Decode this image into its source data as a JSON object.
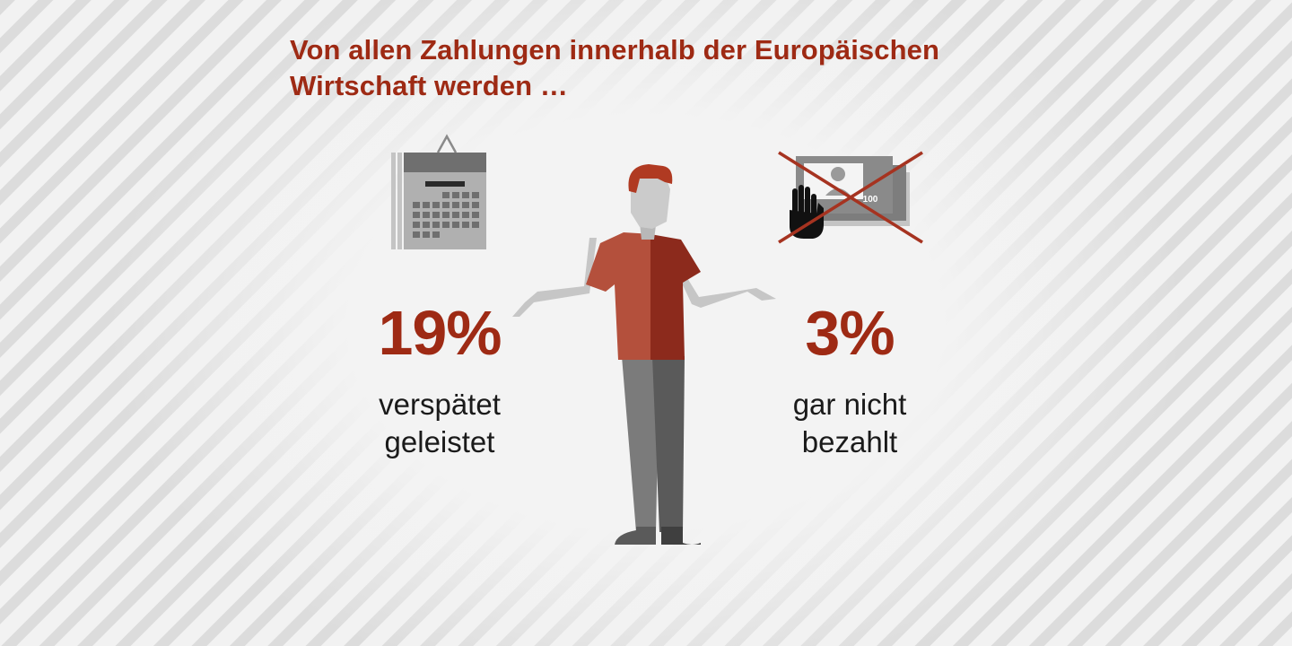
{
  "title": {
    "line1": "Von allen Zahlungen innerhalb der Europäischen",
    "line2": "Wirtschaft werden …"
  },
  "left_stat": {
    "percent": "19%",
    "line1": "verspätet",
    "line2": "geleistet",
    "icon": "calendar-icon"
  },
  "right_stat": {
    "percent": "3%",
    "line1": "gar nicht",
    "line2": "bezahlt",
    "icon": "crossed-out-banknote-icon",
    "banknote_value": "100"
  },
  "colors": {
    "accent": "#9e2a14",
    "shirt_light": "#b4503c",
    "shirt_dark": "#8c2a1c",
    "background": "#f2f2f2",
    "stripe": "#dcdcdc"
  }
}
